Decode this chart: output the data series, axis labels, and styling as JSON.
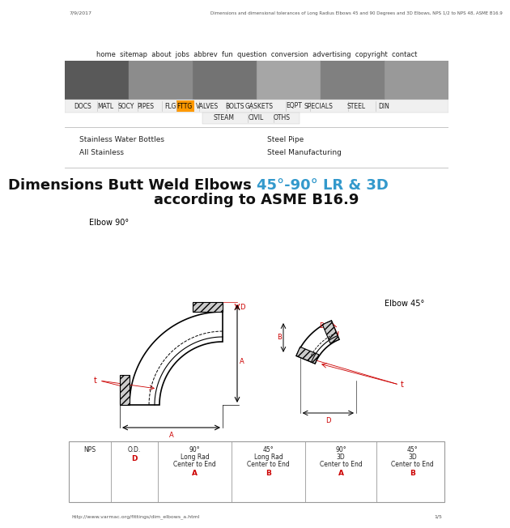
{
  "page_title": "7/9/2017",
  "browser_title": "Dimensions and dimensional tolerances of Long Radius Elbows 45 and 90 Degrees and 3D Elbows, NPS 1/2 to NPS 48, ASME B16.9",
  "nav_items": [
    "home",
    "sitemap",
    "about",
    "jobs",
    "abbrev",
    "fun",
    "question",
    "conversion",
    "advertising",
    "copyright",
    "contact"
  ],
  "menu_items": [
    "DOCS",
    "MATL",
    "SOCY",
    "PIPES",
    "FLG",
    "FTTG",
    "VALVES",
    "BOLTS",
    "GASKETS",
    "EQPT",
    "SPECIALS",
    "STEEL",
    "DIN"
  ],
  "menu_items2": [
    "STEAM",
    "CIVIL",
    "OTHS"
  ],
  "ads_left": [
    "Stainless Water Bottles",
    "All Stainless"
  ],
  "ads_right": [
    "Steel Pipe",
    "Steel Manufacturing"
  ],
  "main_title_black": "Dimensions Butt Weld Elbows ",
  "main_title_blue": "45°-90° LR & 3D",
  "main_title2": "according to ASME B16.9",
  "elbow90_label": "Elbow 90°",
  "elbow45_label": "Elbow 45°",
  "footer_url": "http://www.varmac.org/fittings/dim_elbows_a.html",
  "footer_page": "1/5",
  "bg_color": "#ffffff",
  "red_color": "#cc0000",
  "blue_color": "#3399cc",
  "fttg_color": "#ff9900",
  "gray_line": "#999999",
  "light_gray": "#dddddd",
  "text_dark": "#222222",
  "text_mid": "#555555",
  "hatch_gray": "#aaaaaa"
}
